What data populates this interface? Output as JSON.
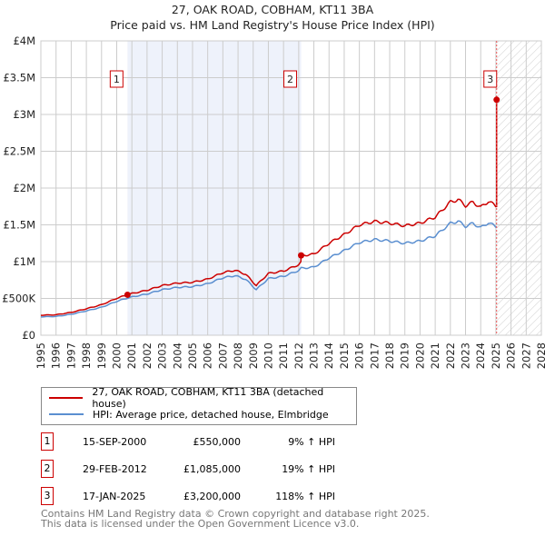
{
  "title": "27, OAK ROAD, COBHAM, KT11 3BA",
  "subtitle": "Price paid vs. HM Land Registry's House Price Index (HPI)",
  "colors": {
    "property": "#cc0000",
    "hpi": "#5b8fd0",
    "shade": "#eef2fb"
  },
  "chart_data": {
    "type": "line",
    "xlim": [
      1995,
      2028
    ],
    "ylim": [
      0,
      4000000
    ],
    "yticks": [
      0,
      500000,
      1000000,
      1500000,
      2000000,
      2500000,
      3000000,
      3500000,
      4000000
    ],
    "ytick_labels": [
      "£0",
      "£500K",
      "£1M",
      "£1.5M",
      "£2M",
      "£2.5M",
      "£3M",
      "£3.5M",
      "£4M"
    ],
    "xticks": [
      "1995",
      "1996",
      "1997",
      "1998",
      "1999",
      "2000",
      "2001",
      "2002",
      "2003",
      "2004",
      "2005",
      "2006",
      "2007",
      "2008",
      "2009",
      "2010",
      "2011",
      "2012",
      "2013",
      "2014",
      "2015",
      "2016",
      "2017",
      "2018",
      "2019",
      "2020",
      "2021",
      "2022",
      "2023",
      "2024",
      "2025",
      "2026",
      "2027",
      "2028"
    ],
    "grid": true,
    "series": [
      {
        "name": "HPI: Average price, detached house, Elmbridge",
        "x": [
          1995,
          1996,
          1997,
          1998,
          1999,
          2000,
          2000.71,
          2001,
          2002,
          2003,
          2004,
          2005,
          2006,
          2007,
          2007.8,
          2008.5,
          2009.2,
          2010,
          2011,
          2012,
          2012.16,
          2013,
          2014,
          2015,
          2016,
          2017,
          2018,
          2019,
          2020,
          2021,
          2022,
          2022.5,
          2023,
          2023.5,
          2024,
          2024.5,
          2025.05
        ],
        "values": [
          250000,
          255000,
          285000,
          330000,
          380000,
          460000,
          505000,
          520000,
          560000,
          620000,
          650000,
          660000,
          700000,
          780000,
          810000,
          760000,
          620000,
          770000,
          800000,
          880000,
          910000,
          925000,
          1050000,
          1150000,
          1260000,
          1300000,
          1280000,
          1250000,
          1280000,
          1350000,
          1520000,
          1550000,
          1480000,
          1520000,
          1460000,
          1530000,
          1470000
        ]
      },
      {
        "name": "27, OAK ROAD, COBHAM, KT11 3BA (detached house)"
      }
    ],
    "sales": [
      {
        "n": "1",
        "x": 2000.71,
        "price": 550000
      },
      {
        "n": "2",
        "x": 2012.16,
        "price": 1085000
      },
      {
        "n": "3",
        "x": 2025.05,
        "price": 3200000
      }
    ]
  },
  "legend": {
    "property": "27, OAK ROAD, COBHAM, KT11 3BA (detached house)",
    "hpi": "HPI: Average price, detached house, Elmbridge"
  },
  "transactions": [
    {
      "n": "1",
      "date": "15-SEP-2000",
      "price": "£550,000",
      "hpi": "9% ↑ HPI"
    },
    {
      "n": "2",
      "date": "29-FEB-2012",
      "price": "£1,085,000",
      "hpi": "19% ↑ HPI"
    },
    {
      "n": "3",
      "date": "17-JAN-2025",
      "price": "£3,200,000",
      "hpi": "118% ↑ HPI"
    }
  ],
  "footer": {
    "line1": "Contains HM Land Registry data © Crown copyright and database right 2025.",
    "line2": "This data is licensed under the Open Government Licence v3.0."
  }
}
